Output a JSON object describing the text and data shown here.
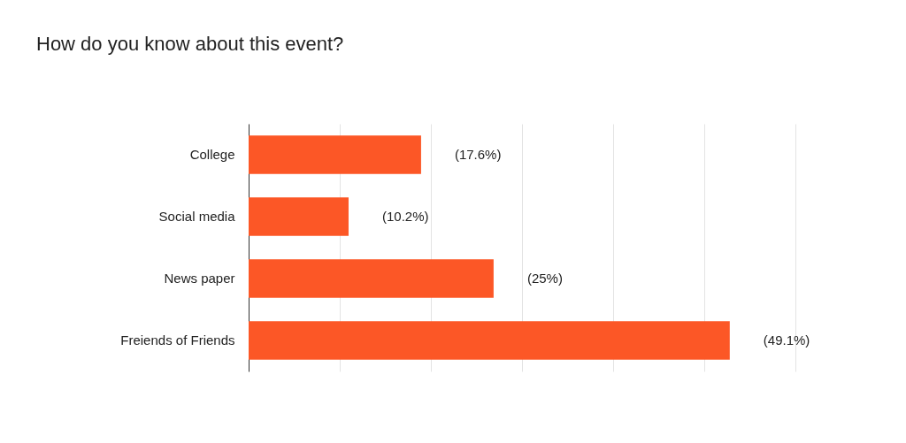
{
  "chart_data": {
    "type": "bar",
    "orientation": "horizontal",
    "title": "How do you know about this event?",
    "categories": [
      "College",
      "Social media",
      "News paper",
      "Freiends of Friends"
    ],
    "values": [
      17.6,
      10.2,
      25,
      49.1
    ],
    "value_labels": [
      "(17.6%)",
      "(10.2%)",
      "(25%)",
      "(49.1%)"
    ],
    "color": "#fc5726",
    "xlim": [
      0,
      55.8
    ],
    "xticks": [
      {
        "value": 0,
        "label": null
      },
      {
        "value": 9.3,
        "label": null
      },
      {
        "value": 18.6,
        "label": null
      },
      {
        "value": 27.9,
        "label": null
      },
      {
        "value": 37.2,
        "label": null
      },
      {
        "value": 46.5,
        "label": null
      },
      {
        "value": 55.8,
        "label": null
      }
    ],
    "grid": "x"
  }
}
